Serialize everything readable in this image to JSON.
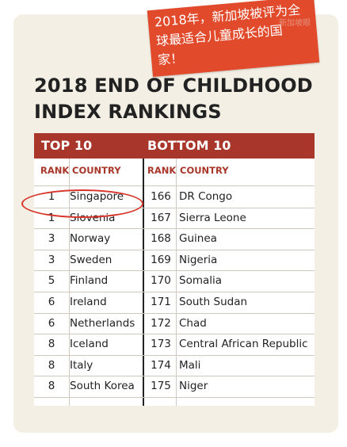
{
  "title": [
    "2018 END OF CHILDHOOD",
    "INDEX RANKINGS"
  ],
  "sections": {
    "top": "TOP 10",
    "bottom": "BOTTOM 10"
  },
  "columns": {
    "rank": "RANK",
    "country": "COUNTRY"
  },
  "top10": [
    {
      "rank": "1",
      "country": "Singapore"
    },
    {
      "rank": "1",
      "country": "Slovenia"
    },
    {
      "rank": "3",
      "country": "Norway"
    },
    {
      "rank": "3",
      "country": "Sweden"
    },
    {
      "rank": "5",
      "country": "Finland"
    },
    {
      "rank": "6",
      "country": "Ireland"
    },
    {
      "rank": "6",
      "country": "Netherlands"
    },
    {
      "rank": "8",
      "country": "Iceland"
    },
    {
      "rank": "8",
      "country": "Italy"
    },
    {
      "rank": "8",
      "country": "South Korea"
    }
  ],
  "bottom10": [
    {
      "rank": "166",
      "country": "DR Congo"
    },
    {
      "rank": "167",
      "country": "Sierra Leone"
    },
    {
      "rank": "168",
      "country": "Guinea"
    },
    {
      "rank": "169",
      "country": "Nigeria"
    },
    {
      "rank": "170",
      "country": "Somalia"
    },
    {
      "rank": "171",
      "country": "South Sudan"
    },
    {
      "rank": "172",
      "country": "Chad"
    },
    {
      "rank": "173",
      "country": "Central African Republic"
    },
    {
      "rank": "174",
      "country": "Mali"
    },
    {
      "rank": "175",
      "country": "Niger"
    }
  ],
  "note": [
    "2018年，新加坡被评为全",
    "球最适合儿童成长的国",
    "家！"
  ],
  "watermark": "新加坡眼",
  "colors": {
    "accent": "#a8362a",
    "note": "#e14a2b",
    "highlight": "#d8342a",
    "card": "#f3efe5"
  }
}
